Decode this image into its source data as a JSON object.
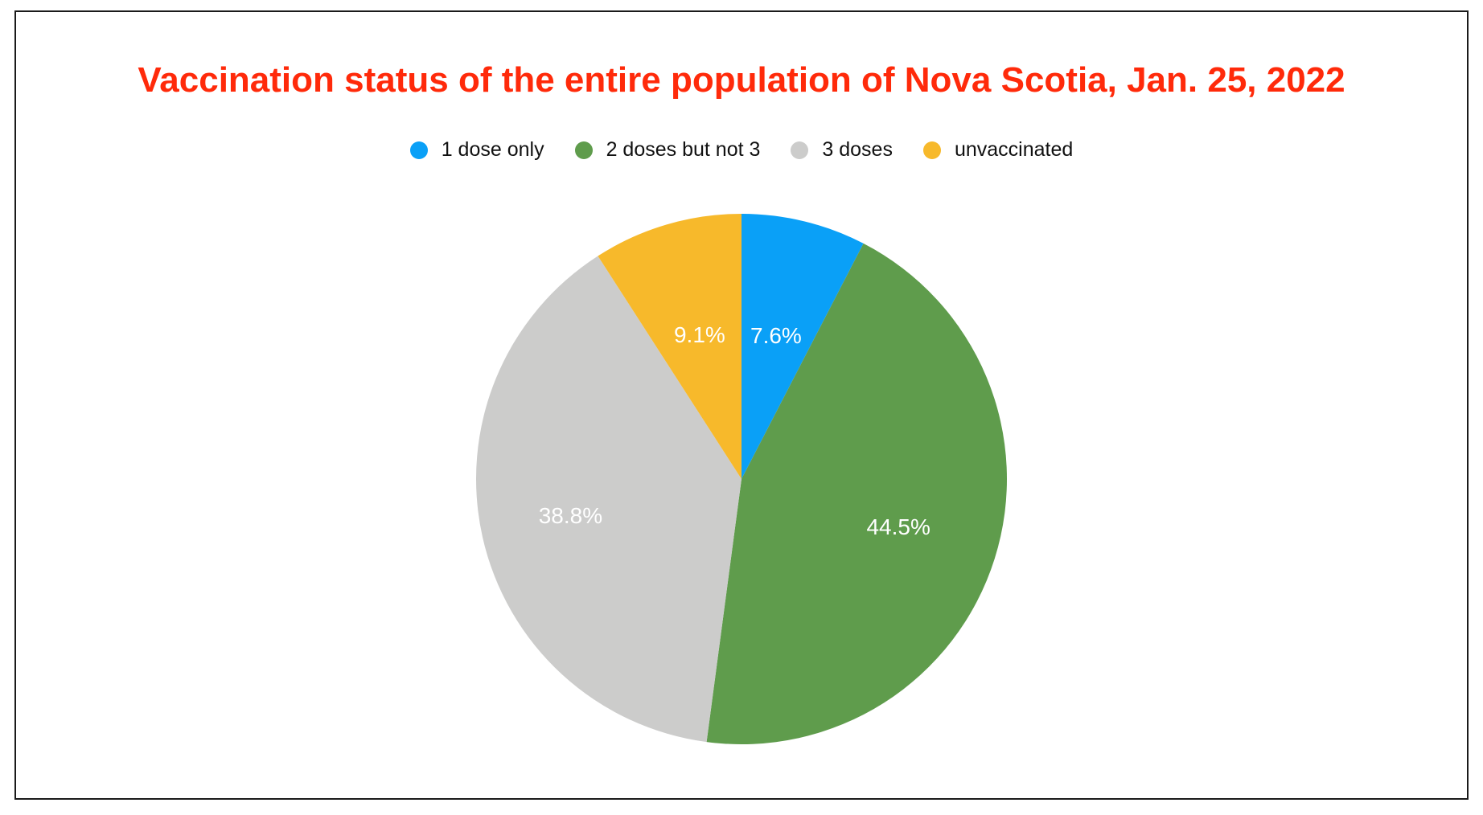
{
  "chart_data": {
    "type": "pie",
    "title": "Vaccination status of the entire population of Nova Scotia, Jan. 25, 2022",
    "title_color": "#ff2a0a",
    "legend_position": "top",
    "slices": [
      {
        "name": "1 dose only",
        "value": 7.6,
        "label": "7.6%",
        "color": "#0aa0f7"
      },
      {
        "name": "2 doses but not 3",
        "value": 44.5,
        "label": "44.5%",
        "color": "#5f9c4c"
      },
      {
        "name": "3 doses",
        "value": 38.8,
        "label": "38.8%",
        "color": "#cccccb"
      },
      {
        "name": "unvaccinated",
        "value": 9.1,
        "label": "9.1%",
        "color": "#f7b92b"
      }
    ]
  }
}
